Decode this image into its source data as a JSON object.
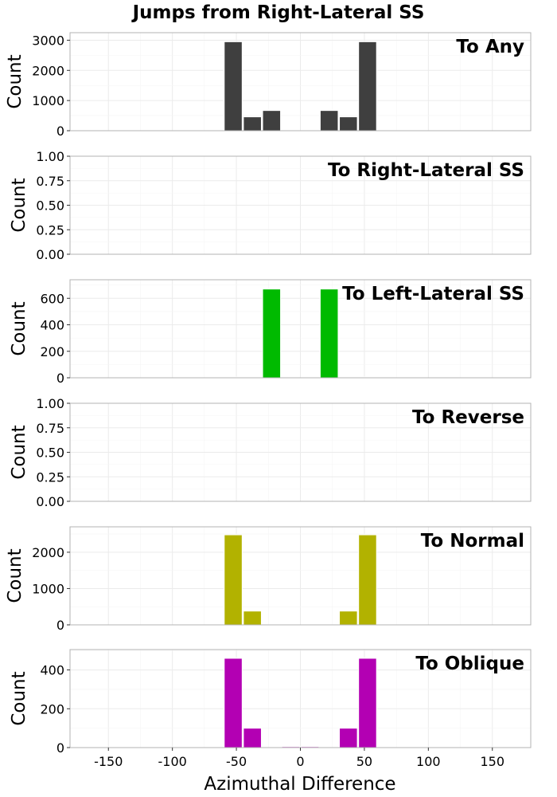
{
  "chart_data": {
    "type": "bar",
    "title": "Jumps from Right-Lateral SS",
    "xlabel": "Azimuthal Difference",
    "ylabel": "Count",
    "xlim": [
      -180,
      180
    ],
    "x_ticks": [
      -150,
      -100,
      -50,
      0,
      50,
      100,
      150
    ],
    "bin_width": 15,
    "bins": [
      -52.5,
      -37.5,
      -22.5,
      -7.5,
      7.5,
      22.5,
      37.5,
      52.5
    ],
    "grid": true,
    "panels": [
      {
        "label": "To Any",
        "color": "#3f3f3f",
        "ylim": [
          0,
          3250
        ],
        "y_ticks": [
          "0",
          "1000",
          "2000",
          "3000"
        ],
        "y_tick_values": [
          0,
          1000,
          2000,
          3000
        ],
        "values": [
          2950,
          460,
          670,
          0,
          0,
          670,
          460,
          2950
        ]
      },
      {
        "label": "To Right-Lateral SS",
        "color": "#e41a1c",
        "ylim": [
          0,
          1
        ],
        "y_ticks": [
          "0.00",
          "0.25",
          "0.50",
          "0.75",
          "1.00"
        ],
        "y_tick_values": [
          0,
          0.25,
          0.5,
          0.75,
          1
        ],
        "values": [
          0,
          0,
          0,
          0,
          0,
          0,
          0,
          0
        ]
      },
      {
        "label": "To Left-Lateral SS",
        "color": "#00ba00",
        "ylim": [
          0,
          740
        ],
        "y_ticks": [
          "0",
          "200",
          "400",
          "600"
        ],
        "y_tick_values": [
          0,
          200,
          400,
          600
        ],
        "values": [
          3,
          0,
          670,
          0,
          0,
          670,
          0,
          3
        ]
      },
      {
        "label": "To Reverse",
        "color": "#1f78b4",
        "ylim": [
          0,
          1
        ],
        "y_ticks": [
          "0.00",
          "0.25",
          "0.50",
          "0.75",
          "1.00"
        ],
        "y_tick_values": [
          0,
          0.25,
          0.5,
          0.75,
          1
        ],
        "values": [
          0,
          0,
          0,
          0,
          0,
          0,
          0,
          0
        ]
      },
      {
        "label": "To Normal",
        "color": "#b2b200",
        "ylim": [
          0,
          2700
        ],
        "y_ticks": [
          "0",
          "1000",
          "2000"
        ],
        "y_tick_values": [
          0,
          1000,
          2000
        ],
        "values": [
          2480,
          380,
          0,
          0,
          0,
          0,
          380,
          2480
        ]
      },
      {
        "label": "To Oblique",
        "color": "#b300b3",
        "ylim": [
          0,
          505
        ],
        "y_ticks": [
          "0",
          "200",
          "400"
        ],
        "y_tick_values": [
          0,
          200,
          400
        ],
        "values": [
          460,
          100,
          0,
          5,
          5,
          0,
          100,
          460
        ]
      }
    ]
  }
}
